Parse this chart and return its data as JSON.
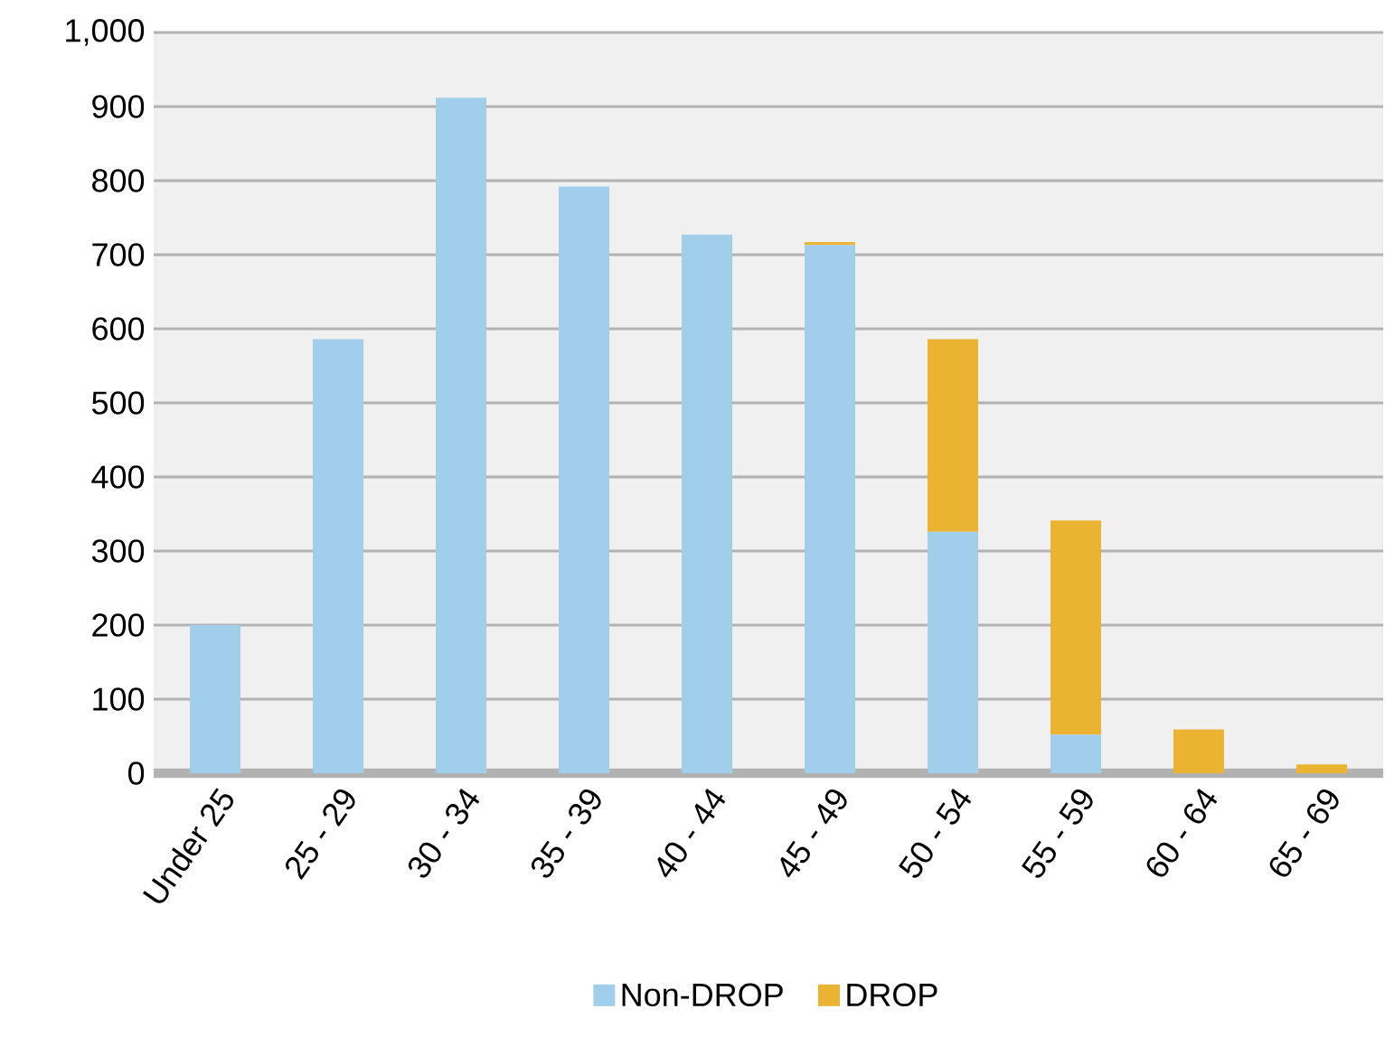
{
  "chart_data": {
    "type": "bar",
    "stacked": true,
    "categories": [
      "Under 25",
      "25 - 29",
      "30 - 34",
      "35 - 39",
      "40 - 44",
      "45 - 49",
      "50 - 54",
      "55 - 59",
      "60 - 64",
      "65 - 69"
    ],
    "series": [
      {
        "name": "Non-DROP",
        "color": "#a1cfeb",
        "values": [
          200,
          586,
          912,
          792,
          727,
          713,
          326,
          52,
          0,
          0
        ]
      },
      {
        "name": "DROP",
        "color": "#eab332",
        "values": [
          0,
          0,
          0,
          0,
          0,
          4,
          260,
          289,
          59,
          12
        ]
      }
    ],
    "ylim": [
      0,
      1000
    ],
    "yticks": [
      0,
      100,
      200,
      300,
      400,
      500,
      600,
      700,
      800,
      900,
      {
        "value": 1000,
        "label": "1,000"
      }
    ],
    "grid": "y",
    "legend": "bottom"
  }
}
